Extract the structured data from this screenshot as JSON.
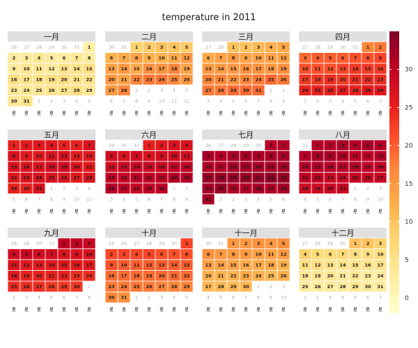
{
  "chart_data": {
    "type": "heatmap",
    "title": "temperature in 2011",
    "year": 2011,
    "month_labels": [
      "一月",
      "二月",
      "三月",
      "四月",
      "五月",
      "六月",
      "七月",
      "八月",
      "九月",
      "十月",
      "十一月",
      "十二月"
    ],
    "weekday_labels": [
      "星",
      "星",
      "星",
      "星",
      "星",
      "星",
      "星"
    ],
    "colorbar": {
      "min": -2,
      "max": 35,
      "ticks": [
        0,
        5,
        10,
        15,
        20,
        25,
        30
      ]
    },
    "colors": [
      "#ffffcc",
      "#ffeda0",
      "#fed976",
      "#feb24c",
      "#fd8d3c",
      "#fc4e2a",
      "#e31a1c",
      "#bd0026",
      "#800026"
    ],
    "out_of_month_color": "#ffffff",
    "grid": false,
    "legend": "right",
    "monthly_values": [
      [
        2,
        3,
        3,
        4,
        3,
        3,
        4,
        3,
        3,
        4,
        4,
        3,
        5,
        5,
        6,
        6,
        5,
        5,
        6,
        6,
        5,
        5,
        4,
        4,
        4,
        5,
        5,
        6,
        4,
        4,
        5
      ],
      [
        8,
        9,
        10,
        10,
        9,
        12,
        13,
        14,
        12,
        12,
        13,
        15,
        14,
        15,
        13,
        16,
        16,
        17,
        14,
        15,
        14,
        17,
        18,
        18,
        17,
        15,
        15,
        17
      ],
      [
        10,
        10,
        11,
        12,
        13,
        13,
        14,
        15,
        14,
        14,
        14,
        14,
        15,
        15,
        15,
        16,
        16,
        15,
        16,
        17,
        17,
        16,
        17,
        18,
        19,
        18,
        18,
        18,
        19,
        19,
        19
      ],
      [
        17,
        18,
        19,
        20,
        20,
        20,
        21,
        21,
        22,
        21,
        21,
        21,
        22,
        23,
        23,
        23,
        23,
        23,
        24,
        23,
        24,
        24,
        24,
        25,
        25,
        25,
        26,
        25,
        26,
        26
      ],
      [
        25,
        26,
        26,
        26,
        25,
        25,
        27,
        27,
        26,
        26,
        27,
        27,
        26,
        26,
        27,
        27,
        27,
        28,
        28,
        27,
        26,
        26,
        27,
        27,
        27,
        27,
        26,
        27,
        25,
        25,
        27
      ],
      [
        25,
        26,
        27,
        27,
        28,
        27,
        28,
        27,
        28,
        28,
        28,
        28,
        29,
        29,
        29,
        29,
        30,
        30,
        30,
        29,
        30,
        30,
        30,
        31,
        31,
        31,
        30,
        29,
        30,
        30
      ],
      [
        31,
        31,
        32,
        31,
        32,
        32,
        32,
        32,
        32,
        31,
        31,
        32,
        32,
        32,
        32,
        32,
        33,
        33,
        33,
        33,
        33,
        34,
        33,
        32,
        33,
        31,
        31,
        32,
        31,
        32,
        32
      ],
      [
        31,
        31,
        32,
        31,
        32,
        31,
        31,
        32,
        32,
        31,
        30,
        30,
        31,
        31,
        31,
        31,
        31,
        31,
        30,
        30,
        30,
        30,
        29,
        29,
        29,
        29,
        29,
        28,
        28,
        29,
        29
      ],
      [
        30,
        30,
        29,
        28,
        29,
        28,
        28,
        27,
        27,
        27,
        27,
        26,
        26,
        26,
        26,
        26,
        26,
        26,
        25,
        25,
        25,
        25,
        24,
        24,
        24,
        24,
        24,
        23,
        23,
        23
      ],
      [
        22,
        22,
        22,
        22,
        22,
        21,
        21,
        21,
        21,
        20,
        20,
        20,
        20,
        20,
        20,
        19,
        19,
        19,
        19,
        19,
        19,
        19,
        18,
        18,
        18,
        18,
        17,
        17,
        17,
        17,
        16
      ],
      [
        15,
        15,
        16,
        15,
        16,
        16,
        15,
        15,
        15,
        14,
        14,
        15,
        14,
        14,
        14,
        13,
        13,
        13,
        12,
        12,
        12,
        12,
        13,
        12,
        11,
        12,
        11,
        11,
        11,
        11
      ],
      [
        10,
        10,
        8,
        8,
        7,
        7,
        7,
        6,
        6,
        6,
        6,
        6,
        5,
        5,
        5,
        5,
        5,
        4,
        4,
        4,
        3,
        4,
        3,
        3,
        3,
        3,
        3,
        3,
        4,
        3,
        3
      ]
    ]
  }
}
